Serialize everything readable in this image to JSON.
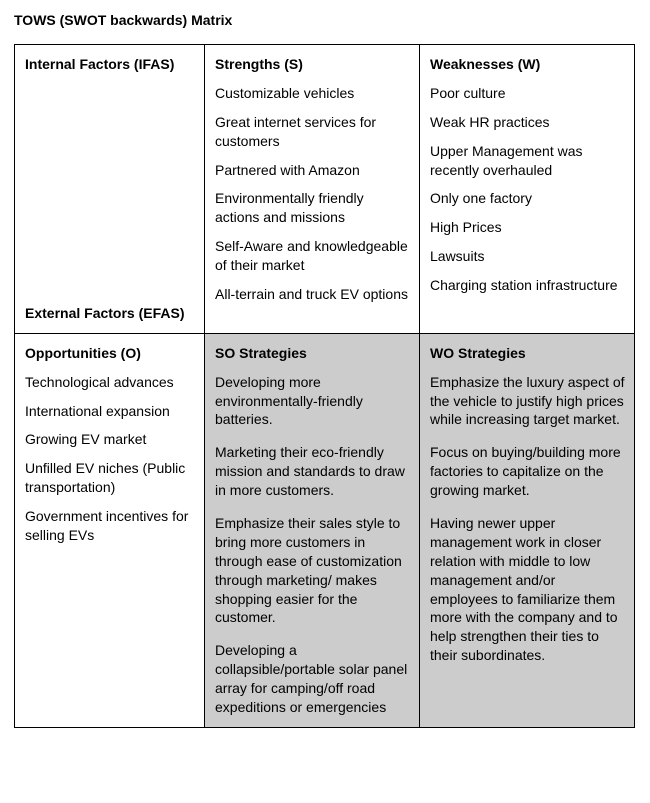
{
  "title": "TOWS (SWOT backwards) Matrix",
  "row1": {
    "col1_top": "Internal Factors (IFAS)",
    "col1_bottom": "External Factors (EFAS)",
    "strengths_header": "Strengths (S)",
    "strengths": [
      "Customizable vehicles",
      "Great internet services for customers",
      "Partnered with Amazon",
      "Environmentally friendly actions and missions",
      "Self-Aware and knowledgeable of their market",
      "All-terrain and truck EV options"
    ],
    "weaknesses_header": "Weaknesses (W)",
    "weaknesses": [
      "Poor culture",
      "Weak HR practices",
      "Upper Management was recently overhauled",
      "Only one factory",
      "High Prices",
      "Lawsuits",
      "Charging station infrastructure"
    ]
  },
  "row2": {
    "opportunities_header": "Opportunities (O)",
    "opportunities": [
      "Technological advances",
      "International expansion",
      "Growing EV market",
      "Unfilled EV niches (Public transportation)",
      "Government incentives for selling EVs"
    ],
    "so_header": "SO Strategies",
    "so": [
      "Developing more environmentally-friendly batteries.",
      " Marketing their eco-friendly mission and standards to draw in more customers.",
      "Emphasize their sales style to bring more customers in through ease of customization through marketing/ makes shopping easier for the customer.",
      " Developing a collapsible/portable solar panel array for camping/off road expeditions or emergencies"
    ],
    "wo_header": "WO Strategies",
    "wo": [
      "Emphasize the luxury aspect of the vehicle to justify high prices while increasing target market.",
      " Focus on buying/building more factories to capitalize on the growing market.",
      "Having newer upper management work in closer relation with middle to low management and/or employees to familiarize them more with the company and to help strengthen their ties to their subordinates."
    ]
  },
  "colors": {
    "shade": "#cccccc",
    "border": "#000000",
    "bg": "#ffffff"
  }
}
